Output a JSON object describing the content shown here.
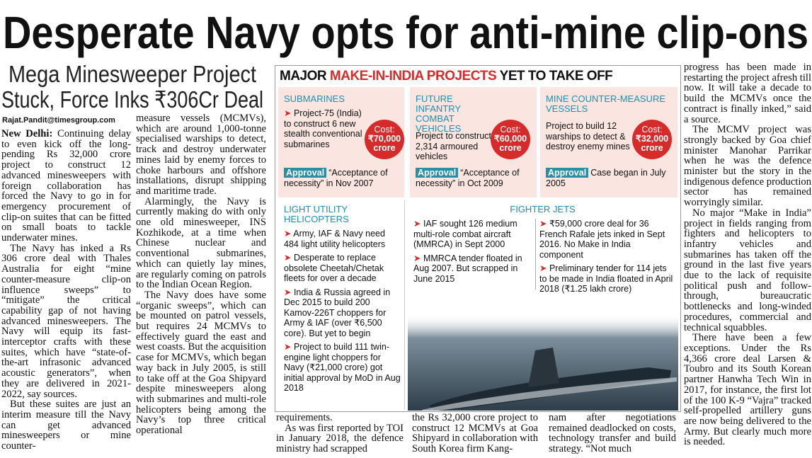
{
  "headline": "Desperate Navy opts for anti-mine clip-ons",
  "subhead": [
    "Mega Minesweeper Project",
    "Stuck, Force Inks ₹306Cr Deal"
  ],
  "byline": "Rajat.Pandit@timesgroup.com",
  "story": {
    "dateline": "New Delhi:",
    "col1": [
      "Continuing delay to even kick off the long-pending Rs 32,000 crore project to construct 12 advanced minesweepers with foreign collaboration has forced the Navy to go in for emergency procurement of clip-on suites that can be fitted on small boats to tackle underwater mines.",
      "The Navy has inked a Rs 306 crore deal with Thales Australia for eight “mine counter-measure clip-on influence sweeps” to “mitigate” the critical capability gap of not having advanced minesweepers. The Navy will equip its fast-interceptor crafts with these suites, which have “state-of-the-art infrasonic advanced acoustic generators”, when they are delivered in 2021-2022, say sources.",
      "But these suites are just an interim measure till the Navy can get advanced minesweepers or mine counter-"
    ],
    "col2": [
      "measure vessels (MCMVs), which are around 1,000-tonne specialised warships to detect, track and destroy underwater mines laid by enemy forces to choke harbours and offshore installations, disrupt shipping and maritime trade.",
      "Alarmingly, the Navy is currently making do with only one old minesweeper, INS Kozhikode, at a time when Chinese nuclear and conventional submarines, which can quietly lay mines, are regularly coming on patrols to the Indian Ocean Region.",
      "The Navy does have some “organic sweeps”, which can be mounted on patrol vessels, but requires 24 MCMVs to effectively guard the east and west coasts. But the acquisition case for MCMVs, which began way back in July 2005, is still to take off at the Goa Shipyard despite minesweepers along with submarines and multi-role helicopters being among the Navy’s top three critical operational"
    ],
    "col3": [
      "requirements.",
      "As was first reported by TOI in January 2018, the defence ministry had scrapped"
    ],
    "col4": [
      "the Rs 32,000 crore project to construct 12 MCMVs at Goa Shipyard in collaboration with South Korea firm Kang-"
    ],
    "col5": [
      "nam after negotiations remained deadlocked on costs, technology transfer and build strategy. “Not much"
    ],
    "col6": [
      "progress has been made in restarting the project afresh till now. It will take a decade to build the MCMVs once the contract is finally inked,” said a source.",
      "The MCMV project was strongly backed by Goa chief minister Manohar Parrikar when he was the defence minister but the story in the indigenous defence production sector has remained worryingly similar.",
      "No major “Make in India” project in fields ranging from fighters and helicopters to infantry vehicles and submarines has taken off the ground in the last five years due to the lack of requisite political push and follow-through, bureaucratic bottlenecks and long-winded procedures, commercial and technical squabbles.",
      "There have been a few exceptions. Under the Rs 4,366 crore deal Larsen & Toubro and its South Korean partner Hanwha Tech Win in 2017, for instance, the first lot of the 100 K-9 “Vajra” tracked self-propelled artillery guns are now being delivered to the Army. But clearly much more is needed."
    ]
  },
  "box": {
    "title": [
      "MAJOR ",
      "MAKE-IN-INDIA PROJECTS",
      " YET TO TAKE OFF"
    ],
    "cost_label": "Cost:",
    "approval_label": "Approval",
    "panels": [
      {
        "heading": "SUBMARINES",
        "text": "Project-75 (India) to construct 6 new stealth conventional submarines",
        "cost": "₹70,000 crore",
        "approval": "“Acceptance of necessity” in Nov 2007"
      },
      {
        "heading": "FUTURE INFANTRY COMBAT VEHICLES",
        "text": "Project to construct 2,314 armoured vehicles",
        "cost": "₹60,000 crore",
        "approval": "“Acceptance of necessity” in Oct 2009"
      },
      {
        "heading": "MINE COUNTER-MEASURE VESSELS",
        "text": "Project to build 12 warships to detect & destroy enemy mines",
        "cost": "₹32,000 crore",
        "approval": "Case began in July 2005"
      }
    ],
    "helicopters": {
      "heading": "LIGHT UTILITY HELICOPTERS",
      "items": [
        "Army, IAF & Navy need 484 light utility helicopters",
        "Desperate to replace obsolete Cheetah/Chetak fleets for over a decade",
        "India & Russia agreed in Dec 2015 to build 200 Kamov-226T choppers for Army & IAF (over ₹6,500 core). But yet to begin",
        "Project to build 111 twin-engine light choppers for Navy (₹21,000 crore) got initial approval by MoD in Aug 2018"
      ]
    },
    "jets": {
      "heading": "FIGHTER JETS",
      "left": [
        "IAF sought 126 medium multi-role combat aircraft (MMRCA) in Sept 2000",
        "MMRCA tender floated in Aug 2007. But scrapped in June 2015"
      ],
      "right": [
        "₹59,000 crore deal for 36 French Rafale jets inked in Sept 2016. No Make in India component",
        "Preliminary tender for 114 jets to be made in India floated in April 2018 (₹1.25 lakh crore)"
      ]
    }
  }
}
